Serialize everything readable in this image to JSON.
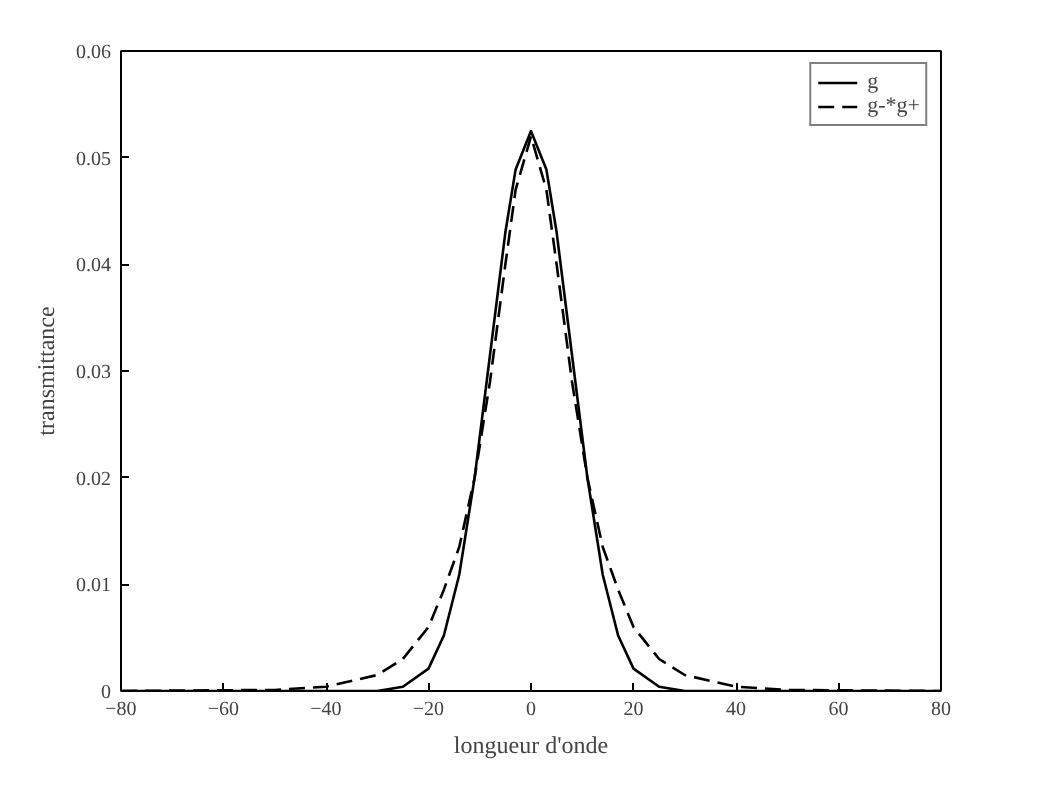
{
  "chart_data": {
    "type": "line",
    "xlabel": "longueur d'onde",
    "ylabel": "transmittance",
    "xlim": [
      -80,
      80
    ],
    "xticks": [
      -80,
      -60,
      -40,
      -20,
      0,
      20,
      40,
      60,
      80
    ],
    "ylim": [
      0,
      0.06
    ],
    "yticks": [
      0,
      0.01,
      0.02,
      0.03,
      0.04,
      0.05,
      0.06
    ],
    "grid": false,
    "legend": "top right",
    "marker": "none",
    "series": [
      {
        "name": "g",
        "color": "#000000",
        "line_style": "solid",
        "x": [
          -80,
          -40,
          -30,
          -25,
          -20,
          -17,
          -14,
          -11,
          -8,
          -5,
          -3,
          0,
          3,
          5,
          8,
          11,
          14,
          17,
          20,
          25,
          30,
          40,
          80
        ],
        "values": [
          0,
          0,
          0.0,
          0.0004,
          0.0021,
          0.0052,
          0.0109,
          0.02,
          0.0315,
          0.043,
          0.0489,
          0.0525,
          0.0489,
          0.043,
          0.0315,
          0.02,
          0.0109,
          0.0052,
          0.0021,
          0.0004,
          0.0,
          0,
          0
        ]
      },
      {
        "name": "g-*g+",
        "color": "#000000",
        "line_style": "dashed",
        "x": [
          -80,
          -50,
          -40,
          -30,
          -25,
          -20,
          -17,
          -14,
          -11,
          -8,
          -5,
          -3,
          0,
          3,
          5,
          8,
          11,
          14,
          17,
          20,
          25,
          30,
          40,
          50,
          80
        ],
        "values": [
          0,
          0.0001,
          0.0004,
          0.0015,
          0.003,
          0.006,
          0.0095,
          0.0135,
          0.02,
          0.029,
          0.04,
          0.047,
          0.052,
          0.047,
          0.04,
          0.029,
          0.02,
          0.0135,
          0.0095,
          0.006,
          0.003,
          0.0015,
          0.0004,
          0.0001,
          0
        ]
      }
    ]
  }
}
